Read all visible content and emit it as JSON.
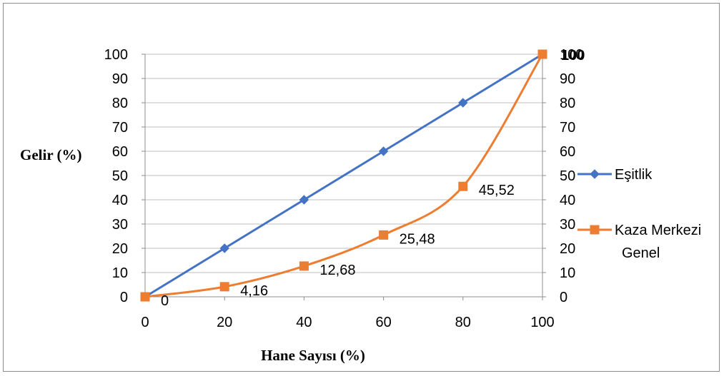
{
  "chart_data": {
    "type": "line",
    "x": [
      0,
      20,
      40,
      60,
      80,
      100
    ],
    "xlabel": "Hane Sayısı (%)",
    "ylabel": "Gelir (%)",
    "xlim": [
      0,
      100
    ],
    "ylim": [
      0,
      100
    ],
    "x_ticks": [
      "0",
      "20",
      "40",
      "60",
      "80",
      "100"
    ],
    "y_ticks": [
      "0",
      "10",
      "20",
      "30",
      "40",
      "50",
      "60",
      "70",
      "80",
      "90",
      "100"
    ],
    "grid": true,
    "secondary_y_axis": true,
    "legend_position": "right",
    "series": [
      {
        "name": "Eşitlik",
        "color": "#4472C4",
        "marker": "diamond",
        "values": [
          0,
          20,
          40,
          60,
          80,
          100
        ]
      },
      {
        "name": "Kaza Merkezi Genel",
        "legend_lines": [
          "Kaza Merkezi",
          "Genel"
        ],
        "color": "#ED7D31",
        "marker": "square",
        "smooth": true,
        "values": [
          0,
          4.16,
          12.68,
          25.48,
          45.52,
          100
        ],
        "data_labels": [
          "0",
          "4,16",
          "12,68",
          "25,48",
          "45,52",
          "100"
        ]
      }
    ]
  }
}
